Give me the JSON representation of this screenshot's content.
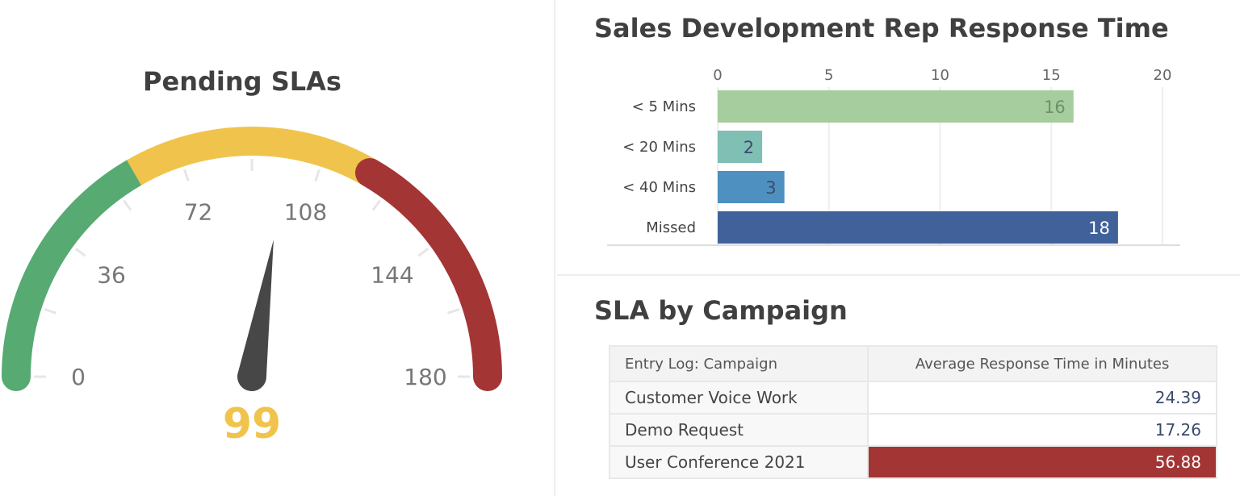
{
  "colors": {
    "green": "#56aa72",
    "yellow": "#f0c44c",
    "red": "#a33535",
    "needle": "#474747"
  },
  "chart_data": [
    {
      "type": "gauge",
      "title": "Pending SLAs",
      "min": 0,
      "max": 180,
      "value": 99,
      "value_label": "99",
      "ticks": [
        "0",
        "36",
        "72",
        "108",
        "144",
        "180"
      ],
      "bands": [
        {
          "from": 0,
          "to": 60,
          "color": "#56aa72"
        },
        {
          "from": 60,
          "to": 120,
          "color": "#f0c44c"
        },
        {
          "from": 120,
          "to": 180,
          "color": "#a33535"
        }
      ]
    },
    {
      "type": "bar",
      "orientation": "horizontal",
      "title": "Sales Development Rep Response Time",
      "categories": [
        "< 5 Mins",
        "< 20 Mins",
        "< 40 Mins",
        "Missed"
      ],
      "values": [
        16,
        2,
        3,
        18
      ],
      "colors": [
        "#a5cd9d",
        "#7fbfb4",
        "#4e90c0",
        "#41619a"
      ],
      "xlim": [
        0,
        20
      ],
      "xticks": [
        "0",
        "5",
        "10",
        "15",
        "20"
      ],
      "grid": true
    }
  ],
  "table": {
    "title": "SLA by Campaign",
    "headers": [
      "Entry Log: Campaign",
      "Average Response Time in Minutes"
    ],
    "rows": [
      [
        "Customer Voice Work",
        "24.39"
      ],
      [
        "Demo Request",
        "17.26"
      ],
      [
        "User Conference 2021",
        "56.88"
      ]
    ]
  }
}
